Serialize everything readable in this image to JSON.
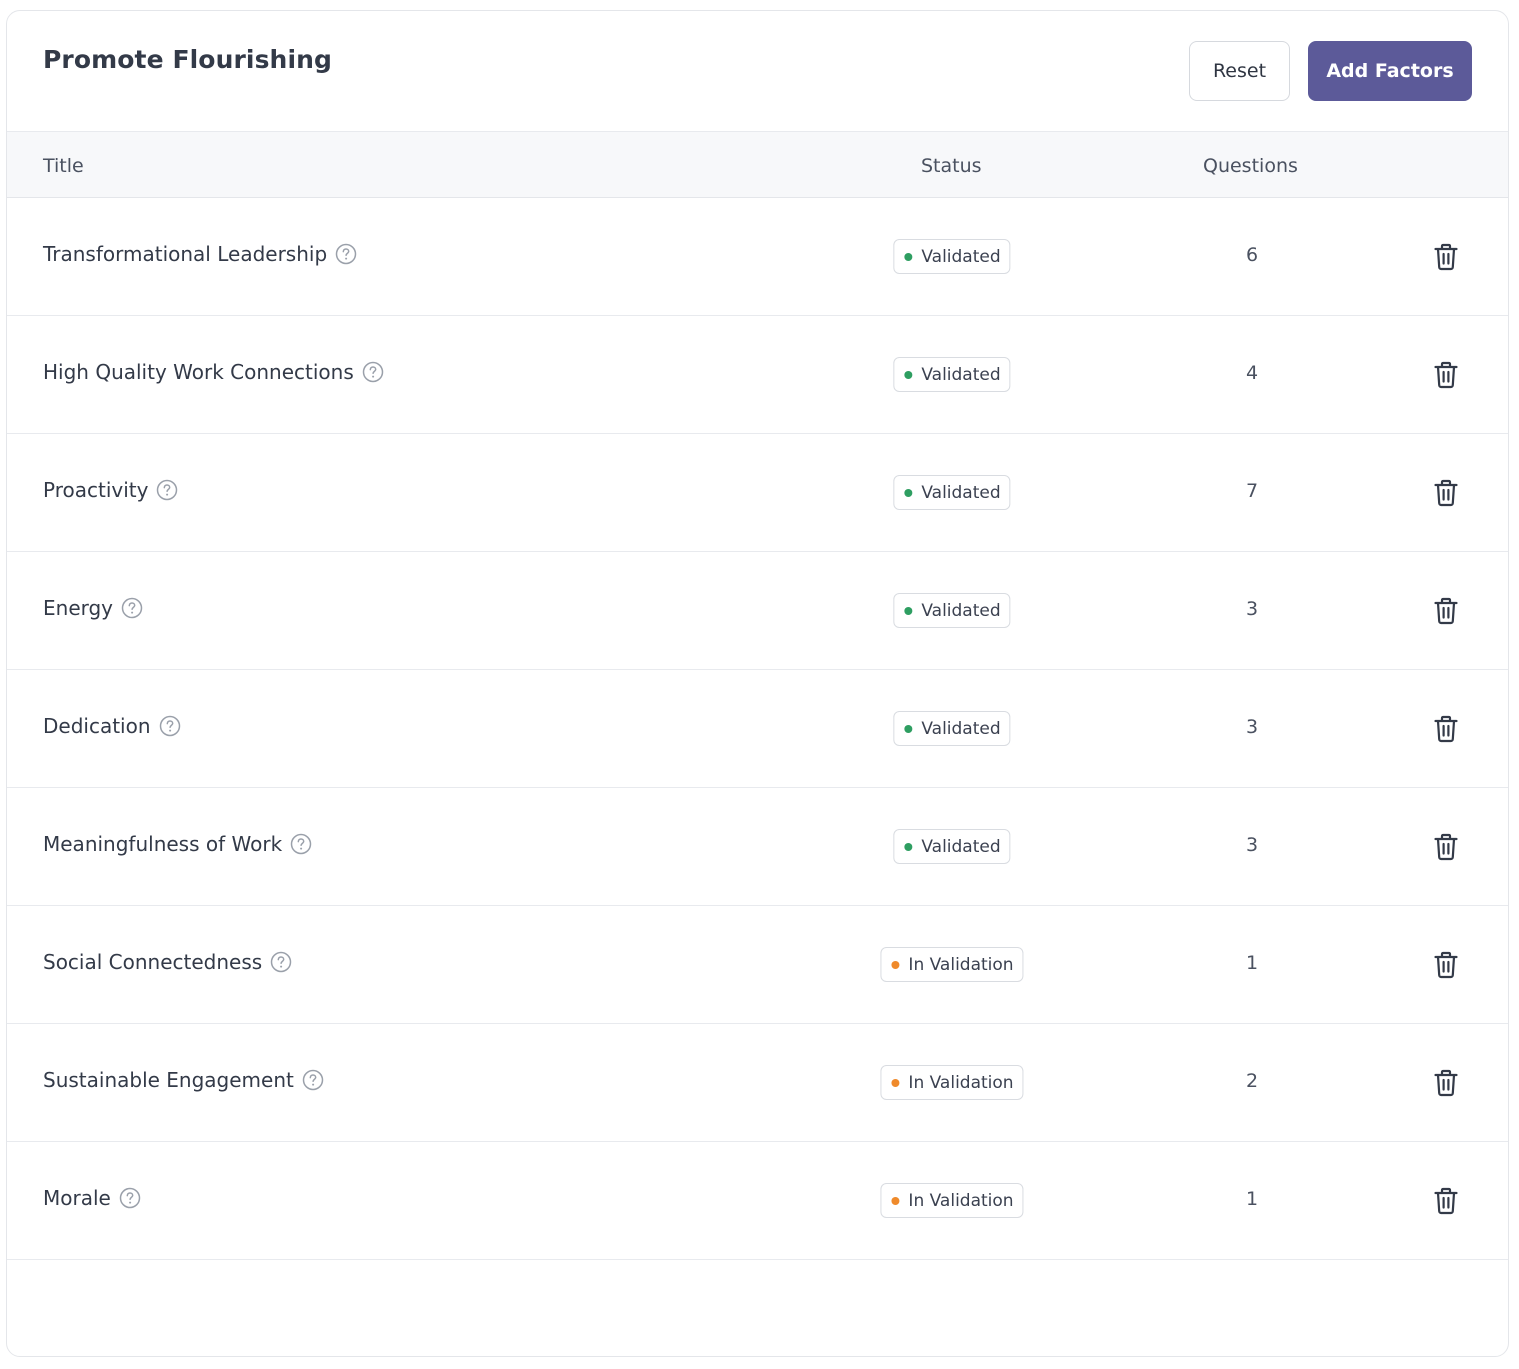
{
  "header": {
    "title": "Promote Flourishing",
    "reset_label": "Reset",
    "add_label": "Add Factors"
  },
  "table": {
    "columns": {
      "title": "Title",
      "status": "Status",
      "questions": "Questions"
    },
    "rows": [
      {
        "title": "Transformational Leadership",
        "status": "Validated",
        "questions": "6"
      },
      {
        "title": "High Quality Work Connections",
        "status": "Validated",
        "questions": "4"
      },
      {
        "title": "Proactivity",
        "status": "Validated",
        "questions": "7"
      },
      {
        "title": "Energy",
        "status": "Validated",
        "questions": "3"
      },
      {
        "title": "Dedication",
        "status": "Validated",
        "questions": "3"
      },
      {
        "title": "Meaningfulness of Work",
        "status": "Validated",
        "questions": "3"
      },
      {
        "title": "Social Connectedness",
        "status": "In Validation",
        "questions": "1"
      },
      {
        "title": "Sustainable Engagement",
        "status": "In Validation",
        "questions": "2"
      },
      {
        "title": "Morale",
        "status": "In Validation",
        "questions": "1"
      }
    ]
  },
  "colors": {
    "primary": "#5c5a99",
    "validated": "#2e9e61",
    "in_validation": "#ef8a2b"
  },
  "icons": {
    "help": "question-circle-icon",
    "delete": "trash-icon"
  }
}
